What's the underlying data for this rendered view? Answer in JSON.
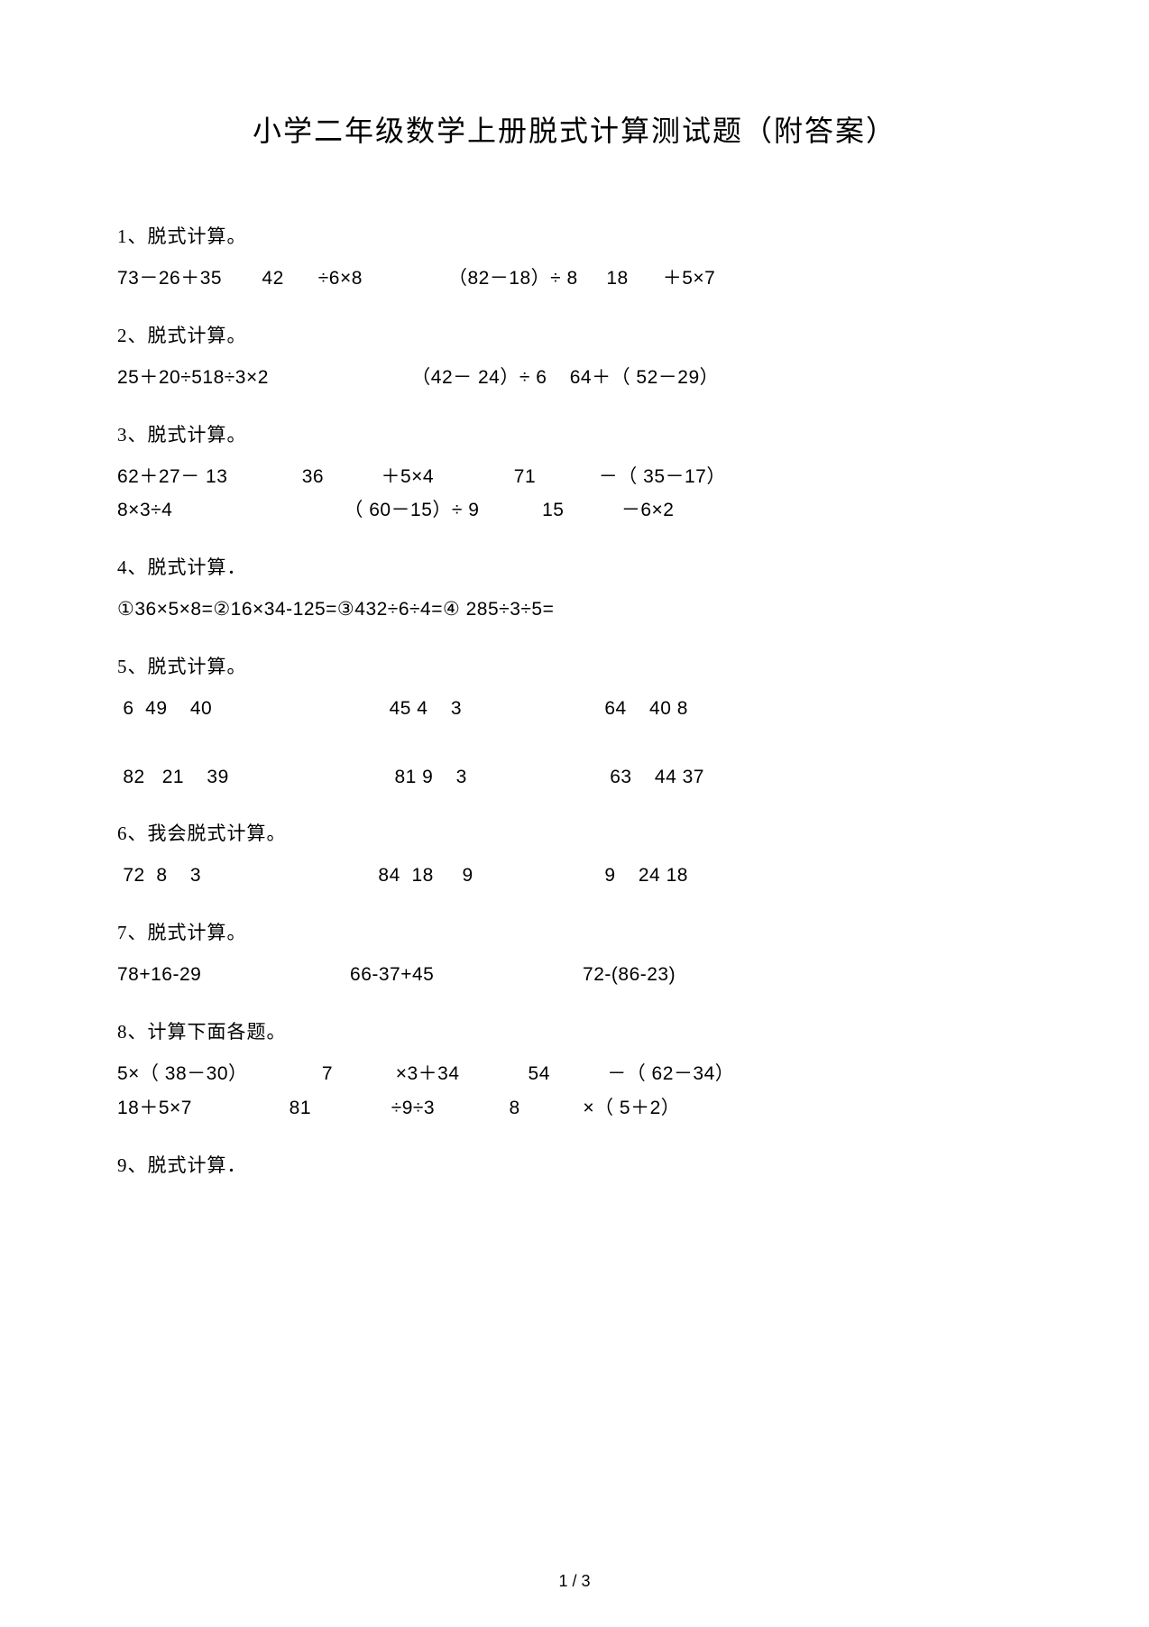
{
  "title": "小学二年级数学上册脱式计算测试题（附答案）",
  "sections": [
    {
      "label": "1、脱式计算。",
      "rows": [
        "73－26＋35       42      ÷6×8               （82－18）÷ 8     18      ＋5×7"
      ]
    },
    {
      "label": "2、脱式计算。",
      "rows": [
        "25＋20÷518÷3×2                         （42－ 24）÷ 6    64＋（ 52－29）"
      ]
    },
    {
      "label": "3、脱式计算。",
      "rows": [
        "62＋27－ 13             36          ＋5×4              71           －（ 35－17）",
        "8×3÷4                              （ 60－15）÷ 9           15          －6×2"
      ]
    },
    {
      "label": "4、脱式计算．",
      "rows": [
        "①36×5×8=②16×34-125=③432÷6÷4=④ 285÷3÷5="
      ]
    },
    {
      "label": "5、脱式计算。",
      "rows": [
        " 6  49    40                               45 4    3                         64    40 8",
        "",
        " 82   21    39                             81 9    3                         63    44 37"
      ]
    },
    {
      "label": "6、我会脱式计算。",
      "rows": [
        " 72  8    3                               84  18     9                       9    24 18"
      ]
    },
    {
      "label": "7、脱式计算。",
      "rows": [
        "78+16-29                          66-37+45                          72-(86-23)"
      ]
    },
    {
      "label": "8、计算下面各题。",
      "rows": [
        "5×（ 38－30）             7           ×3＋34            54          －（ 62－34）",
        "18＋5×7                 81              ÷9÷3             8           ×（ 5＋2）"
      ]
    },
    {
      "label": "9、脱式计算．",
      "rows": []
    }
  ],
  "pageNumber": "1 / 3",
  "colors": {
    "background": "#ffffff",
    "text": "#000000"
  },
  "typography": {
    "title_fontsize": 32,
    "body_fontsize": 21,
    "font_family": "SimSun"
  }
}
